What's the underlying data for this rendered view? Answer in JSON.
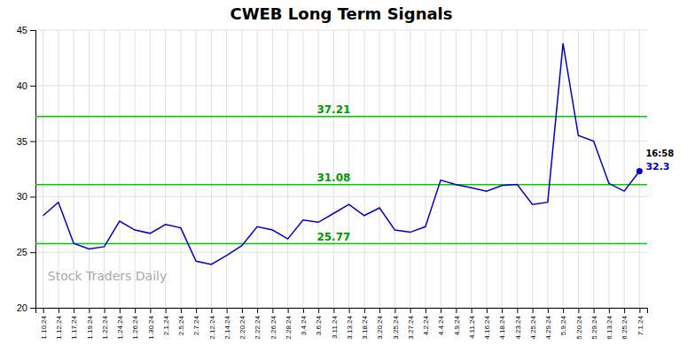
{
  "chart_data": {
    "type": "line",
    "title": "CWEB Long Term Signals",
    "categories": [
      "1.10.24",
      "1.12.24",
      "1.17.24",
      "1.19.24",
      "1.22.24",
      "1.24.24",
      "1.26.24",
      "1.30.24",
      "2.1.24",
      "2.5.24",
      "2.7.24",
      "2.12.24",
      "2.14.24",
      "2.20.24",
      "2.22.24",
      "2.26.24",
      "2.28.24",
      "3.4.24",
      "3.6.24",
      "3.11.24",
      "3.13.24",
      "3.18.24",
      "3.20.24",
      "3.25.24",
      "3.27.24",
      "4.2.24",
      "4.4.24",
      "4.9.24",
      "4.11.24",
      "4.16.24",
      "4.18.24",
      "4.23.24",
      "4.25.24",
      "4.29.24",
      "5.9.24",
      "5.20.24",
      "5.29.24",
      "6.13.24",
      "6.25.24",
      "7.1.24"
    ],
    "values": [
      28.3,
      29.5,
      25.8,
      25.3,
      25.5,
      27.8,
      27.0,
      26.7,
      27.5,
      27.2,
      24.2,
      23.9,
      24.7,
      25.6,
      27.3,
      27.0,
      26.2,
      27.9,
      27.7,
      28.5,
      29.3,
      28.3,
      29.0,
      27.0,
      26.8,
      27.3,
      31.5,
      31.08,
      30.8,
      30.5,
      31.0,
      31.1,
      29.3,
      29.5,
      43.8,
      35.5,
      35.0,
      31.2,
      30.5,
      32.3
    ],
    "color": "#0000cc",
    "ylim": [
      20,
      45
    ],
    "yticks": [
      20,
      25,
      30,
      35,
      40,
      45
    ],
    "grid": true,
    "reference_lines": [
      {
        "value": 37.21,
        "label": "37.21",
        "color": "#00cc00"
      },
      {
        "value": 31.08,
        "label": "31.08",
        "color": "#00cc00"
      },
      {
        "value": 25.77,
        "label": "25.77",
        "color": "#00cc00"
      }
    ],
    "endpoint": {
      "time_label": "16:58",
      "value_label": "32.3"
    },
    "watermark": "Stock Traders Daily"
  }
}
